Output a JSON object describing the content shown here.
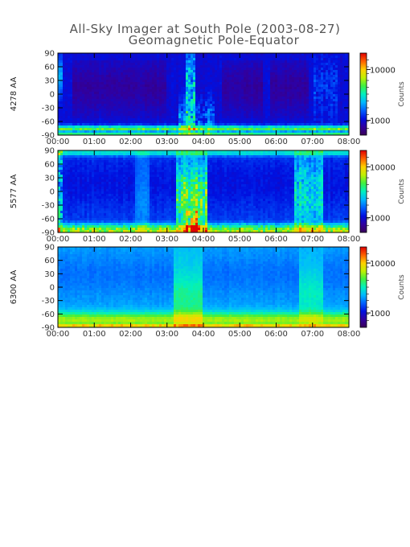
{
  "title": {
    "line1": "All-Sky Imager at South Pole (2003-08-27)",
    "line2": "Geomagnetic Pole-Equator"
  },
  "colorbar": {
    "label": "Counts",
    "ticks": [
      "10000",
      "1000"
    ],
    "colors": [
      "#3a0058",
      "#3000a0",
      "#0010e0",
      "#0060ff",
      "#00b8ff",
      "#00f0c0",
      "#40f040",
      "#c0f000",
      "#ffd000",
      "#ff6000",
      "#e00000"
    ]
  },
  "chart_data": [
    {
      "type": "heatmap",
      "ylabel": "4278 AA",
      "x_ticks": [
        "00:00",
        "01:00",
        "02:00",
        "03:00",
        "04:00",
        "05:00",
        "06:00",
        "07:00",
        "08:00"
      ],
      "y_ticks": [
        "90",
        "60",
        "30",
        "0",
        "-30",
        "-60",
        "-90"
      ],
      "xlim_hours": [
        0,
        8
      ],
      "ylim": [
        -90,
        90
      ],
      "colorbar_ticks": [
        "10000",
        "1000"
      ],
      "colorbar_label": "Counts"
    },
    {
      "type": "heatmap",
      "ylabel": "5577 AA",
      "x_ticks": [
        "00:00",
        "01:00",
        "02:00",
        "03:00",
        "04:00",
        "05:00",
        "06:00",
        "07:00",
        "08:00"
      ],
      "y_ticks": [
        "90",
        "60",
        "30",
        "0",
        "-30",
        "-60",
        "-90"
      ],
      "xlim_hours": [
        0,
        8
      ],
      "ylim": [
        -90,
        90
      ],
      "colorbar_ticks": [
        "10000",
        "1000"
      ],
      "colorbar_label": "Counts"
    },
    {
      "type": "heatmap",
      "ylabel": "6300 AA",
      "x_ticks": [
        "00:00",
        "01:00",
        "02:00",
        "03:00",
        "04:00",
        "05:00",
        "06:00",
        "07:00",
        "08:00"
      ],
      "y_ticks": [
        "90",
        "60",
        "30",
        "0",
        "-30",
        "-60",
        "-90"
      ],
      "xlim_hours": [
        0,
        8
      ],
      "ylim": [
        -90,
        90
      ],
      "colorbar_ticks": [
        "10000",
        "1000"
      ],
      "colorbar_label": "Counts"
    }
  ]
}
